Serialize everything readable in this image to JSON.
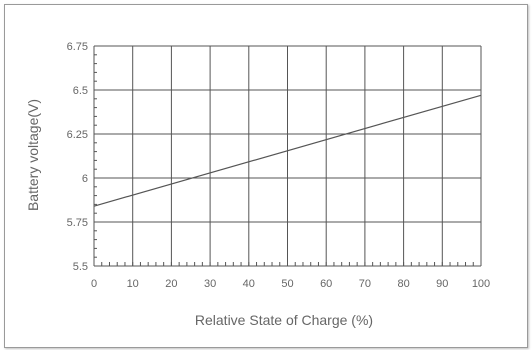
{
  "chart_data": {
    "type": "line",
    "title": "",
    "xlabel": "Relative State of Charge (%)",
    "ylabel": "Battery voltage(V)",
    "xlim": [
      0,
      100
    ],
    "ylim": [
      5.5,
      6.75
    ],
    "x_ticks": [
      0,
      10,
      20,
      30,
      40,
      50,
      60,
      70,
      80,
      90,
      100
    ],
    "y_ticks": [
      5.5,
      5.75,
      6,
      6.25,
      6.5,
      6.75
    ],
    "x_tick_labels": [
      "0",
      "10",
      "20",
      "30",
      "40",
      "50",
      "60",
      "70",
      "80",
      "90",
      "100"
    ],
    "y_tick_labels": [
      "5.5",
      "5.75",
      "6",
      "6.25",
      "6.5",
      "6.75"
    ],
    "grid": true,
    "legend": "none",
    "series": [
      {
        "x": [
          0,
          100
        ],
        "y": [
          5.84,
          6.47
        ]
      }
    ],
    "colors": {
      "line": "#555555",
      "grid": "#555555",
      "text": "#666666"
    }
  }
}
